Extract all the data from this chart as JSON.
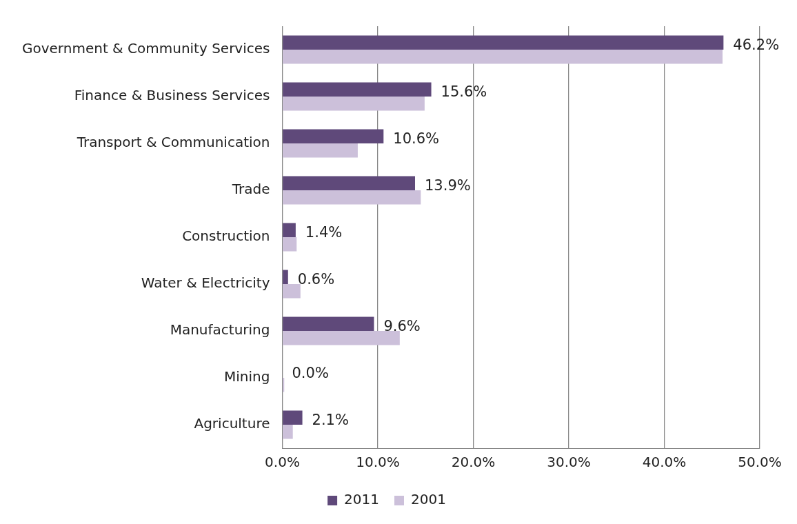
{
  "chart_data": {
    "type": "bar",
    "orientation": "horizontal",
    "categories": [
      "Government & Community Services",
      "Finance & Business Services",
      "Transport & Communication",
      "Trade",
      "Construction",
      "Water & Electricity",
      "Manufacturing",
      "Mining",
      "Agriculture"
    ],
    "series": [
      {
        "name": "2011",
        "color": "#5f497a",
        "values": [
          46.2,
          15.6,
          10.6,
          13.9,
          1.4,
          0.6,
          9.6,
          0.0,
          2.1
        ],
        "value_labels": [
          "46.2%",
          "15.6%",
          "10.6%",
          "13.9%",
          "1.4%",
          "0.6%",
          "9.6%",
          "0.0%",
          "2.1%"
        ]
      },
      {
        "name": "2001",
        "color": "#ccc0da",
        "values": [
          46.1,
          14.9,
          7.9,
          14.5,
          1.5,
          1.9,
          12.3,
          0.2,
          1.1
        ]
      }
    ],
    "xlim": [
      0,
      50
    ],
    "xticks": [
      {
        "value": 0,
        "label": "0.0%"
      },
      {
        "value": 10,
        "label": "10.0%"
      },
      {
        "value": 20,
        "label": "20.0%"
      },
      {
        "value": 30,
        "label": "30.0%"
      },
      {
        "value": 40,
        "label": "40.0%"
      },
      {
        "value": 50,
        "label": "50.0%"
      }
    ],
    "grid": "x",
    "legend": "bottom"
  }
}
